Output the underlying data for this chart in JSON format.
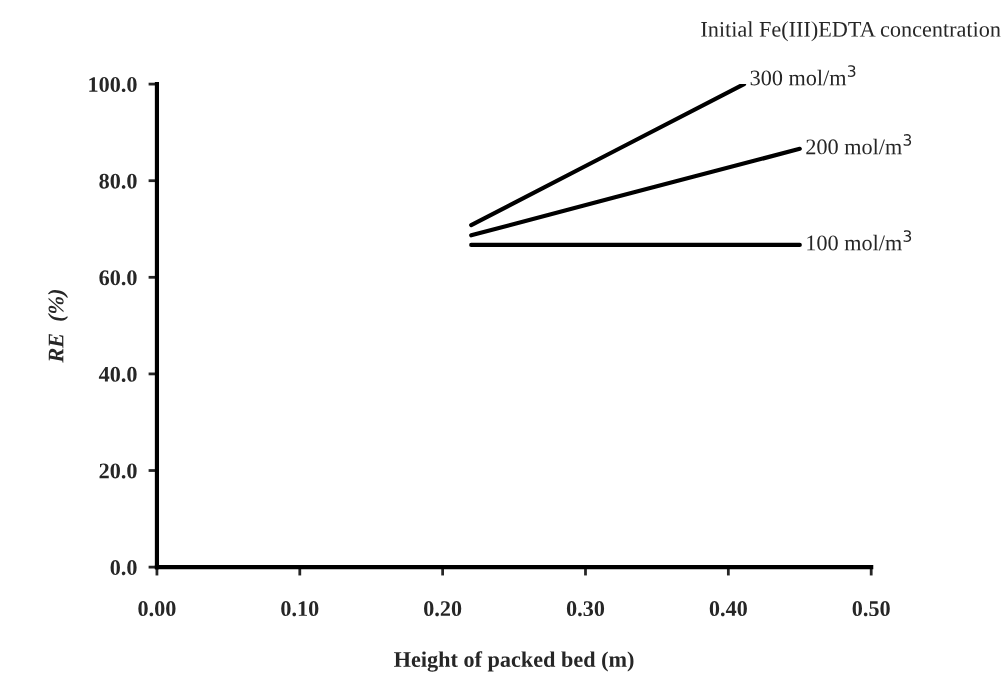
{
  "chart_data": {
    "type": "line",
    "xlabel": "Height of packed bed (m)",
    "ylabel": "RE  (%)",
    "legend_title": "Initial Fe(III)EDTA concentration",
    "xlim": [
      0,
      0.5
    ],
    "xticks": [
      {
        "value": 0,
        "label": "0.00"
      },
      {
        "value": 0.1,
        "label": "0.10"
      },
      {
        "value": 0.2,
        "label": "0.20"
      },
      {
        "value": 0.3,
        "label": "0.30"
      },
      {
        "value": 0.4,
        "label": "0.40"
      },
      {
        "value": 0.5,
        "label": "0.50"
      }
    ],
    "ylim": [
      0,
      100
    ],
    "yticks": [
      {
        "value": 0,
        "label": "0.0"
      },
      {
        "value": 20,
        "label": "20.0"
      },
      {
        "value": 40,
        "label": "40.0"
      },
      {
        "value": 60,
        "label": "60.0"
      },
      {
        "value": 80,
        "label": "80.0"
      },
      {
        "value": 100,
        "label": "100.0"
      }
    ],
    "grid": false,
    "line_style": "solid",
    "marker": "none",
    "series": [
      {
        "name": "300 mol/m$^{3}$",
        "color": "#000000",
        "x": [
          0.22,
          0.32,
          0.411
        ],
        "values": [
          70.8,
          86.1,
          100
        ]
      },
      {
        "name": "200 mol/m$^{3}$",
        "color": "#000000",
        "x": [
          0.22,
          0.32,
          0.45
        ],
        "values": [
          68.7,
          76.5,
          86.6
        ]
      },
      {
        "name": "100 mol/m$^{3}$",
        "color": "#000000",
        "x": [
          0.22,
          0.45
        ],
        "values": [
          66.7,
          66.7
        ]
      }
    ]
  }
}
